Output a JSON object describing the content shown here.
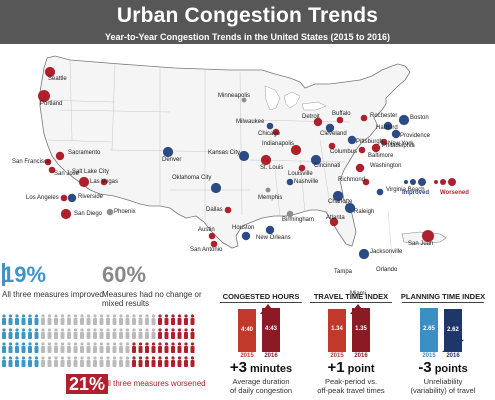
{
  "header": {
    "title": "Urban Congestion Trends",
    "subtitle": "Year-to-Year Congestion Trends in the United States (2015 to 2016)"
  },
  "colors": {
    "improved": "#2b4a86",
    "worsened": "#b01f2c",
    "mixed": "#8e8e8e",
    "banner": "#575757"
  },
  "legend": {
    "improved_label": "Improved",
    "worsened_label": "Worsened"
  },
  "map": {
    "cities": [
      {
        "name": "Seattle",
        "status": "worsened"
      },
      {
        "name": "Portland",
        "status": "worsened"
      },
      {
        "name": "Sacramento",
        "status": "worsened"
      },
      {
        "name": "San Francisco",
        "status": "worsened"
      },
      {
        "name": "San Jose",
        "status": "worsened"
      },
      {
        "name": "Salt Lake City",
        "status": "worsened"
      },
      {
        "name": "Las Vegas",
        "status": "worsened"
      },
      {
        "name": "Riverside",
        "status": "improved"
      },
      {
        "name": "Los Angeles",
        "status": "worsened"
      },
      {
        "name": "San Diego",
        "status": "worsened"
      },
      {
        "name": "Phoenix",
        "status": "mixed"
      },
      {
        "name": "Denver",
        "status": "improved"
      },
      {
        "name": "Minneapolis",
        "status": "mixed"
      },
      {
        "name": "Kansas City",
        "status": "improved"
      },
      {
        "name": "Oklahoma City",
        "status": "improved"
      },
      {
        "name": "Dallas",
        "status": "worsened"
      },
      {
        "name": "Austin",
        "status": "worsened"
      },
      {
        "name": "San Antonio",
        "status": "worsened"
      },
      {
        "name": "Houston",
        "status": "improved"
      },
      {
        "name": "Milwaukee",
        "status": "improved"
      },
      {
        "name": "Chicago",
        "status": "worsened"
      },
      {
        "name": "St. Louis",
        "status": "worsened"
      },
      {
        "name": "Memphis",
        "status": "mixed"
      },
      {
        "name": "New Orleans",
        "status": "improved"
      },
      {
        "name": "Detroit",
        "status": "worsened"
      },
      {
        "name": "Indianapolis",
        "status": "worsened"
      },
      {
        "name": "Louisville",
        "status": "worsened"
      },
      {
        "name": "Nashville",
        "status": "improved"
      },
      {
        "name": "Birmingham",
        "status": "mixed"
      },
      {
        "name": "Cincinnati",
        "status": "improved"
      },
      {
        "name": "Columbus",
        "status": "worsened"
      },
      {
        "name": "Cleveland",
        "status": "improved"
      },
      {
        "name": "Buffalo",
        "status": "worsened"
      },
      {
        "name": "Pittsburgh",
        "status": "improved"
      },
      {
        "name": "Rochester",
        "status": "worsened"
      },
      {
        "name": "Hartford",
        "status": "improved"
      },
      {
        "name": "Boston",
        "status": "improved"
      },
      {
        "name": "Providence",
        "status": "improved"
      },
      {
        "name": "New York",
        "status": "worsened"
      },
      {
        "name": "Philadelphia",
        "status": "worsened"
      },
      {
        "name": "Baltimore",
        "status": "worsened"
      },
      {
        "name": "Washington",
        "status": "worsened"
      },
      {
        "name": "Richmond",
        "status": "worsened"
      },
      {
        "name": "Virginia Beach",
        "status": "improved"
      },
      {
        "name": "Charlotte",
        "status": "improved"
      },
      {
        "name": "Raleigh",
        "status": "improved"
      },
      {
        "name": "Atlanta",
        "status": "worsened"
      },
      {
        "name": "Jacksonville",
        "status": "improved"
      },
      {
        "name": "Orlando",
        "status": "worsened"
      },
      {
        "name": "Tampa",
        "status": "worsened"
      },
      {
        "name": "Miami",
        "status": "worsened"
      },
      {
        "name": "San Juan",
        "status": "worsened"
      }
    ]
  },
  "summary": {
    "improved": {
      "percent": "19%",
      "text": "All three measures improved"
    },
    "mixed": {
      "percent": "60%",
      "text_line1": "Measures had no change or",
      "text_line2": "mixed results"
    },
    "worsened": {
      "percent": "21%",
      "text": "All three measures worsened"
    }
  },
  "chart_data": [
    {
      "type": "bar",
      "title": "CONGESTED HOURS",
      "categories": [
        "2015",
        "2016"
      ],
      "values": [
        "4:40",
        "4:43"
      ],
      "values_minutes": [
        280,
        283
      ],
      "change": "+3",
      "change_unit": "minutes",
      "description_line1": "Average duration",
      "description_line2": "of daily congestion",
      "colors": [
        "#c0392b",
        "#8b1a24"
      ]
    },
    {
      "type": "bar",
      "title": "TRAVEL TIME INDEX",
      "categories": [
        "2015",
        "2016"
      ],
      "values": [
        1.34,
        1.35
      ],
      "change": "+1",
      "change_unit": "point",
      "description_line1": "Peak-period vs.",
      "description_line2": "off-peak travel times",
      "colors": [
        "#c0392b",
        "#8b1a24"
      ]
    },
    {
      "type": "bar",
      "title": "PLANNING TIME INDEX",
      "categories": [
        "2015",
        "2016"
      ],
      "values": [
        2.65,
        2.62
      ],
      "change": "-3",
      "change_unit": "points",
      "description_line1": "Unreliability",
      "description_line2": "(variability) of travel",
      "colors": [
        "#3b8fc4",
        "#1f3768"
      ]
    }
  ]
}
